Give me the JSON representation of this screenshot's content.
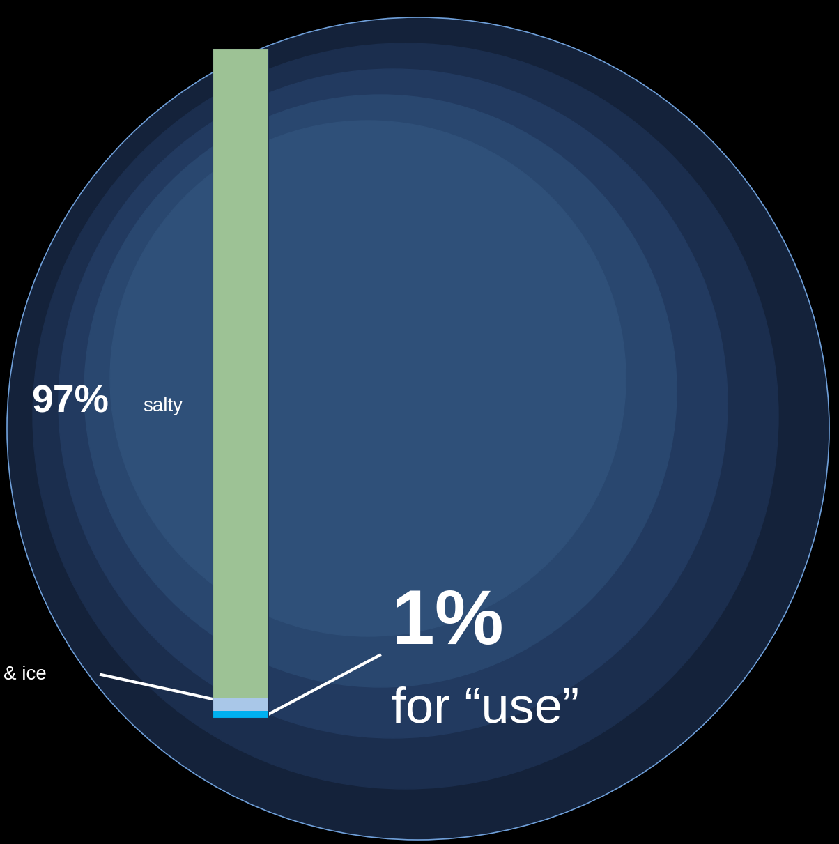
{
  "chart_data": {
    "type": "bar",
    "stacked": true,
    "categories": [
      null
    ],
    "ylim": [
      0,
      100
    ],
    "tick_labels": false,
    "grid": false,
    "series": [
      {
        "name": "for “use”",
        "color": "#00b0f0",
        "values": [
          1
        ],
        "value_labels": [
          "1%"
        ]
      },
      {
        "name": "& ice",
        "color": "#a9c7e8",
        "values": [
          2
        ]
      },
      {
        "name": "salty",
        "color": "#9dc295",
        "values": [
          97
        ],
        "value_labels": [
          "97%"
        ]
      }
    ]
  }
}
